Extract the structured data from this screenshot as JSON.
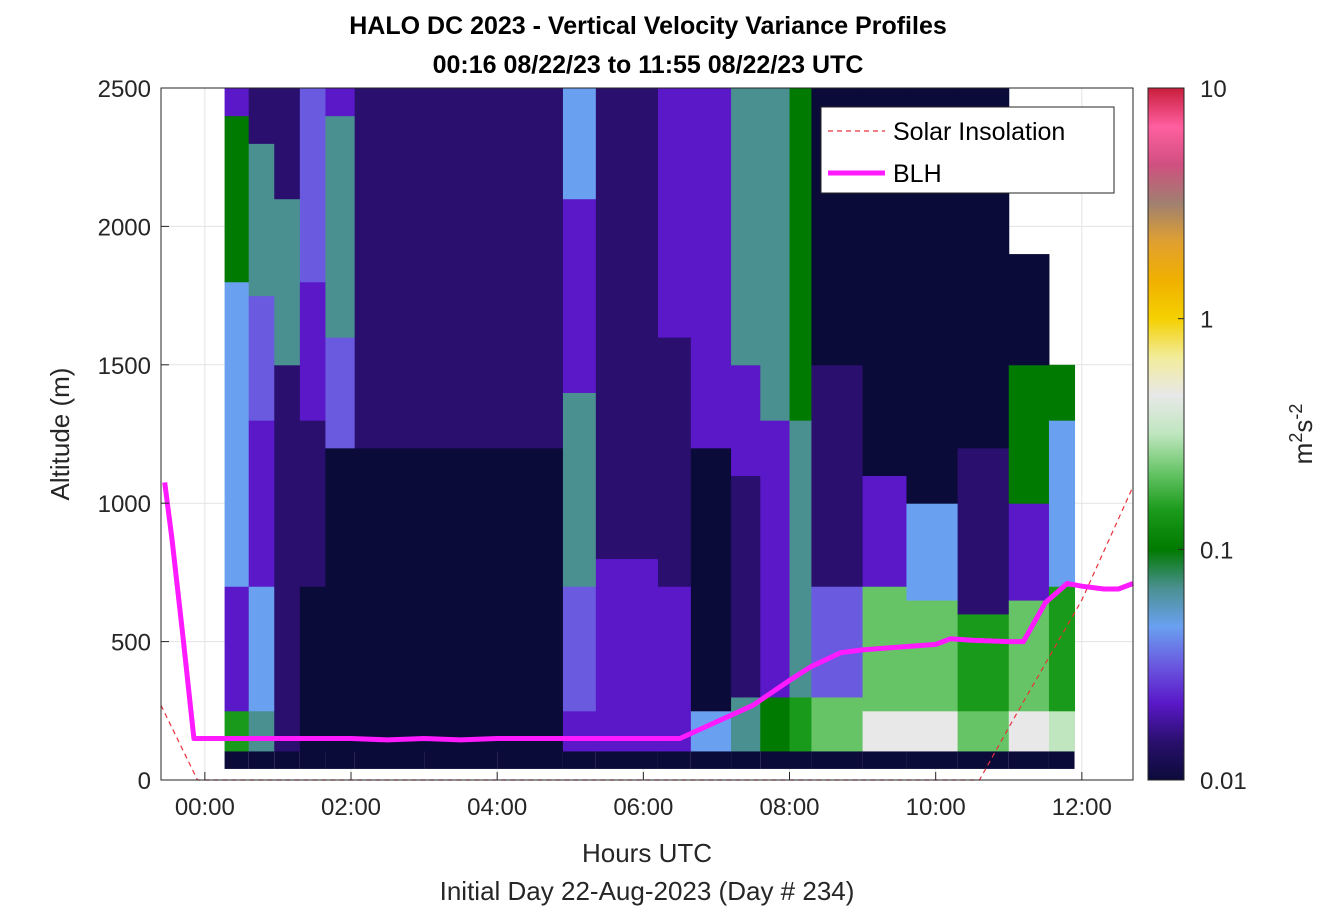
{
  "title_line1": "HALO DC 2023 - Vertical Velocity Variance Profiles",
  "title_line2": "00:16 08/22/23 to 11:55 08/22/23  UTC",
  "chart_data": {
    "type": "heatmap",
    "xlabel": "Hours UTC",
    "xlabel2": "Initial Day 22-Aug-2023 (Day # 234)",
    "ylabel": "Altitude (m)",
    "xlim": [
      -0.6,
      12.7
    ],
    "ylim": [
      0,
      2500
    ],
    "x_ticks": [
      0,
      2,
      4,
      6,
      8,
      10,
      12
    ],
    "x_tick_labels": [
      "00:00",
      "02:00",
      "04:00",
      "06:00",
      "08:00",
      "10:00",
      "12:00"
    ],
    "y_ticks": [
      0,
      500,
      1000,
      1500,
      2000,
      2500
    ],
    "y_tick_labels": [
      "0",
      "500",
      "1000",
      "1500",
      "2000",
      "2500"
    ],
    "grid": true,
    "colorbar": {
      "label": "m²s⁻²",
      "label_base": "m",
      "label_sup1": "2",
      "label_mid": "s",
      "label_sup2": "-2",
      "scale": "log",
      "range": [
        0.01,
        10
      ],
      "ticks": [
        0.01,
        0.1,
        1,
        10
      ],
      "tick_labels": [
        "0.01",
        "0.1",
        "1",
        "10"
      ],
      "colors": [
        "#0b0b3a",
        "#2a0f6e",
        "#5a18c8",
        "#6a5ae0",
        "#6aa0f0",
        "#4a9090",
        "#007a00",
        "#1a9a1a",
        "#66c466",
        "#bfe6bf",
        "#e8e8e8",
        "#f2ec9a",
        "#f5d000",
        "#f0b000",
        "#e0a030",
        "#a08070",
        "#d05080",
        "#ff5fa0",
        "#c81e3c"
      ]
    },
    "legend": {
      "placement": "top-right",
      "entries": [
        {
          "name": "Solar Insolation",
          "color": "#e8323c",
          "style": "dashed"
        },
        {
          "name": "BLH",
          "color": "#ff1aff",
          "style": "solid"
        }
      ]
    },
    "series": [
      {
        "name": "BLH",
        "x": [
          -0.55,
          -0.45,
          -0.3,
          -0.15,
          0.15,
          0.55,
          1.0,
          2.0,
          2.5,
          3.0,
          3.5,
          4.0,
          5.0,
          6.0,
          6.5,
          7.0,
          7.5,
          8.0,
          8.3,
          8.7,
          9.0,
          9.5,
          10.0,
          10.2,
          10.5,
          11.0,
          11.2,
          11.5,
          11.8,
          12.0,
          12.3,
          12.5,
          12.7
        ],
        "y": [
          1075,
          870,
          520,
          150,
          150,
          150,
          150,
          150,
          145,
          150,
          145,
          150,
          150,
          150,
          150,
          210,
          270,
          360,
          410,
          460,
          470,
          480,
          490,
          510,
          505,
          500,
          500,
          640,
          710,
          700,
          690,
          690,
          710
        ]
      },
      {
        "name": "Solar Insolation",
        "x": [
          -0.6,
          -0.1,
          0.0,
          10.0,
          10.6,
          11.0,
          11.5,
          12.0,
          12.7
        ],
        "y": [
          270,
          0,
          0,
          0,
          0,
          190,
          420,
          650,
          1060
        ]
      }
    ],
    "heatmap": {
      "x_start": 0.27,
      "x_step": 0.166,
      "y_start": 105,
      "y_step": 55,
      "n_cols": 65,
      "n_rows": 44,
      "value_field": "log10(m^2 s^-2)",
      "columns": [
        {
          "x0": 0.27,
          "x1": 0.6,
          "profile": [
            [
              105,
              250,
              -0.9
            ],
            [
              250,
              700,
              -1.6
            ],
            [
              700,
              1500,
              -1.4
            ],
            [
              1500,
              1800,
              -1.3
            ],
            [
              1800,
              2400,
              -1.0
            ],
            [
              2400,
              2500,
              -1.7
            ]
          ]
        },
        {
          "x0": 0.6,
          "x1": 0.95,
          "profile": [
            [
              105,
              250,
              -1.2
            ],
            [
              250,
              700,
              -1.3
            ],
            [
              700,
              1300,
              -1.7
            ],
            [
              1300,
              1750,
              -1.5
            ],
            [
              1750,
              2300,
              -1.1
            ],
            [
              2300,
              2500,
              -1.8
            ]
          ]
        },
        {
          "x0": 0.95,
          "x1": 1.3,
          "profile": [
            [
              105,
              250,
              -1.9
            ],
            [
              250,
              700,
              -1.8
            ],
            [
              700,
              1500,
              -1.9
            ],
            [
              1500,
              2100,
              -1.2
            ],
            [
              2100,
              2500,
              -1.9
            ]
          ]
        },
        {
          "x0": 1.3,
          "x1": 1.65,
          "profile": [
            [
              105,
              700,
              -2.0
            ],
            [
              700,
              1300,
              -1.9
            ],
            [
              1300,
              1800,
              -1.7
            ],
            [
              1800,
              2500,
              -1.5
            ]
          ]
        },
        {
          "x0": 1.65,
          "x1": 2.05,
          "profile": [
            [
              105,
              700,
              -2.0
            ],
            [
              700,
              1200,
              -2.0
            ],
            [
              1200,
              1600,
              -1.5
            ],
            [
              1600,
              2400,
              -1.1
            ],
            [
              2400,
              2500,
              -1.6
            ]
          ]
        },
        {
          "x0": 2.05,
          "x1": 3.0,
          "profile": [
            [
              105,
              1200,
              -2.0
            ],
            [
              1200,
              1800,
              -1.9
            ],
            [
              1800,
              2500,
              -1.9
            ]
          ]
        },
        {
          "x0": 3.0,
          "x1": 4.0,
          "profile": [
            [
              105,
              1200,
              -2.0
            ],
            [
              1200,
              1800,
              -1.9
            ],
            [
              1800,
              2500,
              -1.8
            ]
          ]
        },
        {
          "x0": 4.0,
          "x1": 4.9,
          "profile": [
            [
              105,
              1200,
              -2.0
            ],
            [
              1200,
              2500,
              -1.8
            ]
          ]
        },
        {
          "x0": 4.9,
          "x1": 5.35,
          "profile": [
            [
              105,
              250,
              -1.6
            ],
            [
              250,
              700,
              -1.5
            ],
            [
              700,
              1400,
              -1.1
            ],
            [
              1400,
              2100,
              -1.6
            ],
            [
              2100,
              2500,
              -1.4
            ]
          ]
        },
        {
          "x0": 5.35,
          "x1": 6.2,
          "profile": [
            [
              105,
              200,
              -1.7
            ],
            [
              200,
              800,
              -1.7
            ],
            [
              800,
              1400,
              -1.9
            ],
            [
              1400,
              2500,
              -1.9
            ]
          ]
        },
        {
          "x0": 6.2,
          "x1": 6.65,
          "profile": [
            [
              105,
              200,
              -1.7
            ],
            [
              200,
              700,
              -1.6
            ],
            [
              700,
              1600,
              -1.9
            ],
            [
              1600,
              2500,
              -1.6
            ]
          ]
        },
        {
          "x0": 6.65,
          "x1": 7.2,
          "profile": [
            [
              105,
              250,
              -1.3
            ],
            [
              250,
              1200,
              -2.0
            ],
            [
              1200,
              2100,
              -1.6
            ],
            [
              2100,
              2500,
              -1.6
            ]
          ]
        },
        {
          "x0": 7.2,
          "x1": 7.6,
          "profile": [
            [
              105,
              300,
              -1.2
            ],
            [
              300,
              1100,
              -1.9
            ],
            [
              1100,
              1500,
              -1.6
            ],
            [
              1500,
              2200,
              -1.1
            ],
            [
              2200,
              2500,
              -1.1
            ]
          ]
        },
        {
          "x0": 7.6,
          "x1": 8.0,
          "profile": [
            [
              105,
              300,
              -1.0
            ],
            [
              300,
              1300,
              -1.7
            ],
            [
              1300,
              2500,
              -1.1
            ]
          ]
        },
        {
          "x0": 8.0,
          "x1": 8.3,
          "profile": [
            [
              105,
              300,
              -0.9
            ],
            [
              300,
              1300,
              -1.2
            ],
            [
              1300,
              2500,
              -1.0
            ]
          ]
        },
        {
          "x0": 8.3,
          "x1": 9.0,
          "profile": [
            [
              105,
              300,
              -0.7
            ],
            [
              300,
              700,
              -1.5
            ],
            [
              700,
              1500,
              -1.9
            ],
            [
              1500,
              2500,
              -2.0
            ]
          ]
        },
        {
          "x0": 9.0,
          "x1": 9.6,
          "profile": [
            [
              105,
              250,
              -0.35
            ],
            [
              250,
              700,
              -0.7
            ],
            [
              700,
              1100,
              -1.6
            ],
            [
              1100,
              2500,
              -2.0
            ]
          ]
        },
        {
          "x0": 9.6,
          "x1": 10.3,
          "profile": [
            [
              105,
              250,
              -0.35
            ],
            [
              250,
              650,
              -0.6
            ],
            [
              650,
              1000,
              -1.3
            ],
            [
              1000,
              2500,
              -2.0
            ]
          ]
        },
        {
          "x0": 10.3,
          "x1": 11.0,
          "profile": [
            [
              105,
              250,
              -0.7
            ],
            [
              250,
              600,
              -0.9
            ],
            [
              600,
              1200,
              -1.8
            ],
            [
              1200,
              2500,
              -2.0
            ]
          ]
        },
        {
          "x0": 11.0,
          "x1": 11.55,
          "profile": [
            [
              105,
              250,
              -0.4
            ],
            [
              250,
              650,
              -0.7
            ],
            [
              650,
              1000,
              -1.7
            ],
            [
              1000,
              1500,
              -1.0
            ],
            [
              1500,
              1900,
              -2.0
            ]
          ]
        },
        {
          "x0": 11.55,
          "x1": 11.9,
          "profile": [
            [
              105,
              250,
              -0.5
            ],
            [
              250,
              700,
              -0.8
            ],
            [
              700,
              1300,
              -1.4
            ],
            [
              1300,
              1500,
              -1.0
            ]
          ]
        }
      ]
    }
  }
}
